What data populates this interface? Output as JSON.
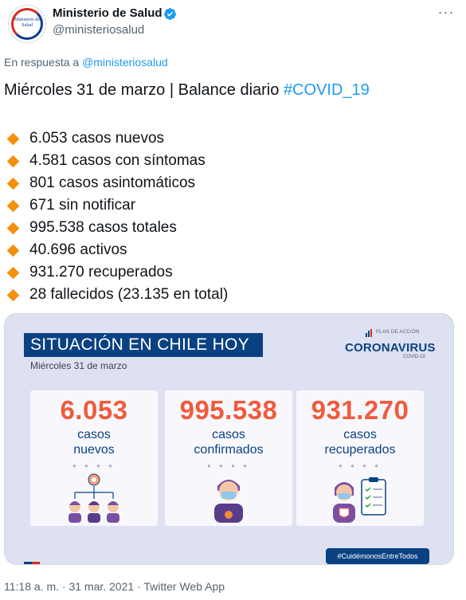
{
  "header": {
    "display_name": "Ministerio de Salud",
    "handle": "@ministeriosalud",
    "avatar_text": "Ministerio de Salud",
    "more_label": "···"
  },
  "reply": {
    "prefix": "En respuesta a",
    "mention": "@ministeriosalud"
  },
  "tweet": {
    "title": "Miércoles 31 de marzo | Balance diario",
    "hashtag": "#COVID_19",
    "bullets": [
      "6.053 casos nuevos",
      "4.581 casos con síntomas",
      "801 casos asintomáticos",
      "671 sin notificar",
      "995.538 casos totales",
      "40.696 activos",
      "931.270 recuperados",
      "28 fallecidos (23.135 en total)"
    ]
  },
  "card": {
    "banner": "SITUACIÓN EN CHILE HOY",
    "date": "Miércoles 31 de marzo",
    "plan_small": "PLAN DE ACCIÓN",
    "plan_big": "CORONAVIRUS",
    "plan_covid": "COVID-19",
    "stats": [
      {
        "value": "6.053",
        "line1": "casos",
        "line2": "nuevos"
      },
      {
        "value": "995.538",
        "line1": "casos",
        "line2": "confirmados"
      },
      {
        "value": "931.270",
        "line1": "casos",
        "line2": "recuperados"
      }
    ],
    "dots": "● ● ● ●",
    "footer_tag": "#CuidémonosEntreTodos"
  },
  "meta": {
    "timestamp": "11:18 a. m. · 31 mar. 2021 · Twitter Web App"
  },
  "colors": {
    "accent_blue": "#1d9bf0",
    "diamond": "#f4900c",
    "gov_navy": "#0a4182",
    "stat_orange": "#ef5b3c"
  }
}
